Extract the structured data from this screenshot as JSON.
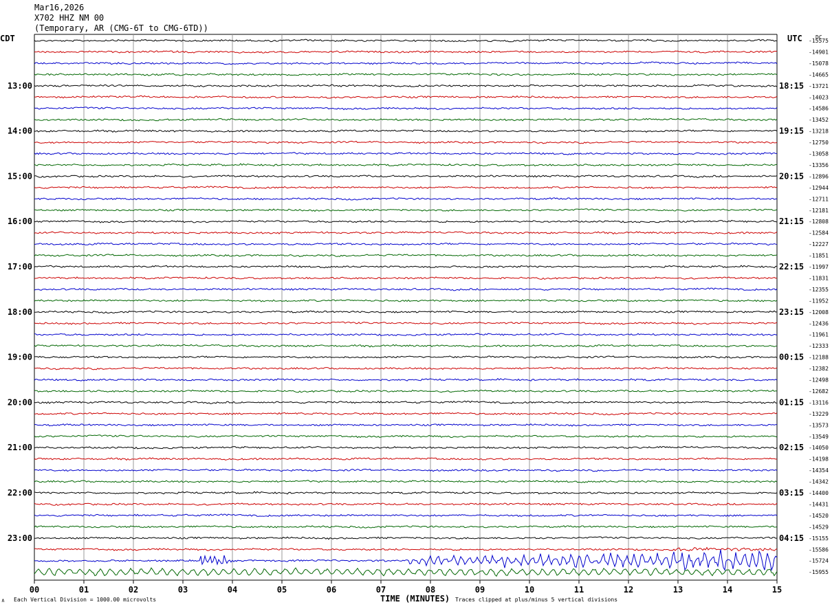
{
  "header": {
    "date": "Mar16,2026",
    "station": "X702 HHZ NM 00",
    "network": "(Temporary, AR (CMG-6T to CMG-6TD))"
  },
  "footer": {
    "scale_note": "Each Vertical Division = 1000.00 microvolts",
    "xlabel": "TIME (MINUTES)",
    "clip_note": "Traces clipped at plus/minus 5 vertical divisions",
    "corner_mark": "∧"
  },
  "chart_data": {
    "type": "line",
    "title": "X702 HHZ NM 00",
    "left_axis_label": "CDT",
    "right_axis_label": "UTC",
    "dc_label": "DC",
    "xlabel": "TIME (MINUTES)",
    "x_ticks": [
      "00",
      "01",
      "02",
      "03",
      "04",
      "05",
      "06",
      "07",
      "08",
      "09",
      "10",
      "11",
      "12",
      "13",
      "14",
      "15"
    ],
    "xlim": [
      0,
      15
    ],
    "grid": true,
    "trace_colors": [
      "#000000",
      "#cc0000",
      "#0000cc",
      "#006600"
    ],
    "left_hour_labels": [
      "13:00",
      "14:00",
      "15:00",
      "16:00",
      "17:00",
      "18:00",
      "19:00",
      "20:00",
      "21:00",
      "22:00",
      "23:00"
    ],
    "right_hour_labels": [
      "18:15",
      "19:15",
      "20:15",
      "21:15",
      "22:15",
      "23:15",
      "00:15",
      "01:15",
      "02:15",
      "03:15",
      "04:15"
    ],
    "dc_offsets": [
      "-15575",
      "-14901",
      "-15078",
      "-14665",
      "-13721",
      "-14023",
      "-14586",
      "-13452",
      "-13218",
      "-12750",
      "-13058",
      "-13356",
      "-12896",
      "-12944",
      "-12711",
      "-12181",
      "-12808",
      "-12584",
      "-12227",
      "-11851",
      "-11997",
      "-11831",
      "-12355",
      "-11952",
      "-12008",
      "-12436",
      "-11961",
      "-12333",
      "-12188",
      "-12382",
      "-12498",
      "-12682",
      "-13116",
      "-13229",
      "-13573",
      "-13549",
      "-14050",
      "-14198",
      "-14354",
      "-14342",
      "-14400",
      "-14431",
      "-14520",
      "-14529",
      "-15155",
      "-15586",
      "-15724",
      "-15955"
    ]
  }
}
